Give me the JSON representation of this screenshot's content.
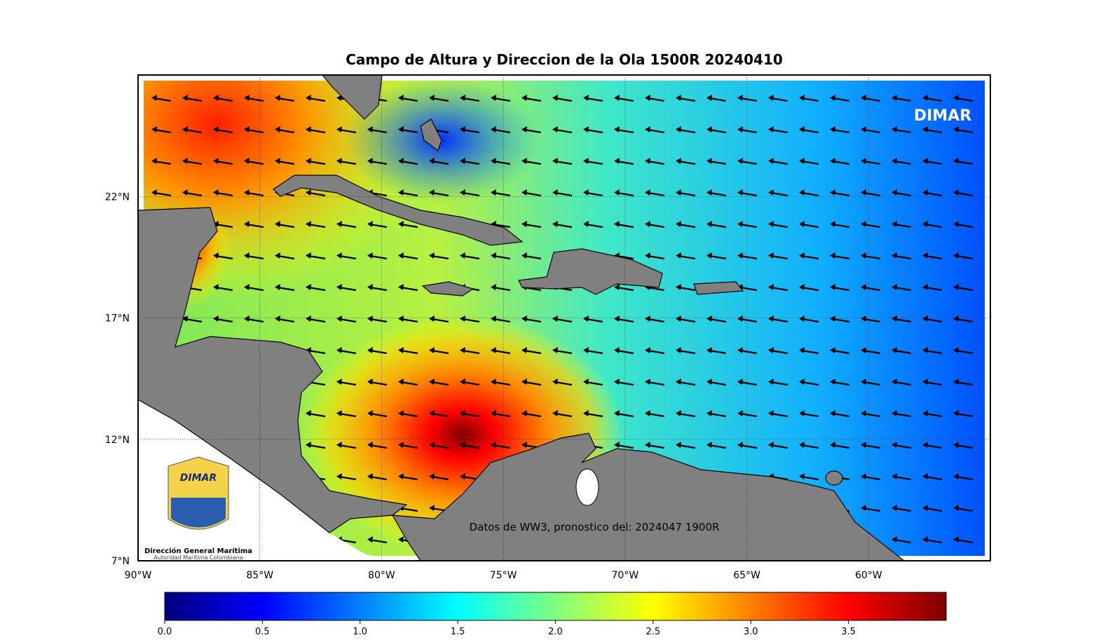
{
  "map": {
    "title": "Campo de Altura y Direccion de la Ola 1500R 20240410",
    "watermark": "DIMAR",
    "source": "Datos de WW3, pronostico del: 2024047 1900R",
    "logo": {
      "emblem": "DIMAR",
      "name": "Dirección General Marítima",
      "subtitle": "Autoridad Marítima Colombiana"
    },
    "xlim": [
      -90,
      -55
    ],
    "ylim": [
      7,
      27
    ],
    "xticks": [
      {
        "value": -90,
        "label": "90°W"
      },
      {
        "value": -85,
        "label": "85°W"
      },
      {
        "value": -80,
        "label": "80°W"
      },
      {
        "value": -75,
        "label": "75°W"
      },
      {
        "value": -70,
        "label": "70°W"
      },
      {
        "value": -65,
        "label": "65°W"
      },
      {
        "value": -60,
        "label": "60°W"
      }
    ],
    "yticks": [
      {
        "value": 7,
        "label": "7°N"
      },
      {
        "value": 12,
        "label": "12°N"
      },
      {
        "value": 17,
        "label": "17°N"
      },
      {
        "value": 22,
        "label": "22°N"
      }
    ],
    "grid": true
  },
  "colorbar": {
    "lim": [
      0,
      4
    ],
    "ticks": [
      {
        "value": 0,
        "label": "0.0"
      },
      0.5,
      {
        "value": 1,
        "label": "1.0"
      },
      1.5,
      {
        "value": 2,
        "label": "2.0"
      },
      2.5,
      {
        "value": 3,
        "label": "3.0"
      },
      3.5
    ],
    "colors": [
      "#00007f",
      "#0000ff",
      "#007fff",
      "#00ffff",
      "#7fff7f",
      "#ffff00",
      "#ff7f00",
      "#ff0000",
      "#7f0000"
    ]
  }
}
